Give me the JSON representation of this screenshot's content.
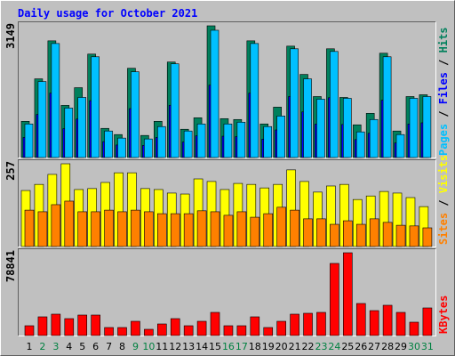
{
  "title": "Daily usage for October 2021",
  "legend_separator": " / ",
  "chart_data": [
    {
      "type": "bar",
      "series": [
        {
          "name": "Hits",
          "color": "#00805C",
          "values": [
            866,
            1881,
            2790,
            1247,
            1670,
            2473,
            697,
            549,
            2134,
            528,
            866,
            2283,
            676,
            951,
            3149,
            930,
            909,
            2790,
            803,
            1205,
            2663,
            1987,
            1458,
            2600,
            1437,
            782,
            1057,
            2494,
            634,
            1458,
            1501
          ]
        },
        {
          "name": "Files",
          "color": "#0000FF",
          "values": [
            480,
            1030,
            1540,
            690,
            920,
            1360,
            380,
            300,
            1170,
            290,
            480,
            1250,
            370,
            520,
            1730,
            510,
            500,
            1540,
            440,
            660,
            1460,
            1090,
            800,
            1430,
            790,
            430,
            580,
            1370,
            350,
            800,
            830
          ]
        },
        {
          "name": "Pages",
          "color": "#00C0FF",
          "values": [
            803,
            1817,
            2726,
            1183,
            1437,
            2409,
            634,
            465,
            2050,
            444,
            740,
            2240,
            634,
            803,
            3043,
            803,
            845,
            2726,
            740,
            993,
            2600,
            1881,
            1395,
            2536,
            1416,
            613,
            909,
            2409,
            549,
            1416,
            1458
          ]
        }
      ],
      "ylim": [
        0,
        3149
      ],
      "yticks": [
        3149
      ]
    },
    {
      "type": "bar",
      "series": [
        {
          "name": "Visits",
          "color": "#FFFF00",
          "values": [
            174,
            193,
            224,
            257,
            177,
            180,
            199,
            229,
            229,
            180,
            177,
            166,
            163,
            210,
            202,
            177,
            196,
            193,
            182,
            193,
            238,
            202,
            169,
            188,
            193,
            146,
            157,
            171,
            166,
            152,
            124
          ]
        },
        {
          "name": "Sites",
          "color": "#FF8000",
          "values": [
            113,
            108,
            130,
            141,
            108,
            108,
            113,
            108,
            113,
            108,
            102,
            102,
            102,
            111,
            108,
            97,
            108,
            91,
            102,
            122,
            113,
            86,
            86,
            69,
            80,
            69,
            86,
            75,
            66,
            64,
            58
          ]
        }
      ],
      "ylim": [
        0,
        257
      ],
      "yticks": [
        257
      ]
    },
    {
      "type": "bar",
      "categories": [
        "1",
        "2",
        "3",
        "4",
        "5",
        "6",
        "7",
        "8",
        "9",
        "10",
        "11",
        "12",
        "13",
        "14",
        "15",
        "16",
        "17",
        "18",
        "19",
        "20",
        "21",
        "22",
        "23",
        "24",
        "25",
        "26",
        "27",
        "28",
        "29",
        "30",
        "31"
      ],
      "highlight_categories": [
        1,
        2,
        8,
        9,
        15,
        16,
        22,
        23,
        29,
        30
      ],
      "highlight_color": "#008040",
      "series": [
        {
          "name": "KBytes",
          "color": "#FF0000",
          "values": [
            9328,
            17808,
            20352,
            16112,
            19504,
            19504,
            7632,
            7632,
            13568,
            5936,
            11024,
            16112,
            9328,
            13568,
            22048,
            9328,
            9328,
            17808,
            7632,
            13568,
            20352,
            21200,
            22048,
            68688,
            78841,
            30528,
            23744,
            28832,
            22048,
            12720,
            26288
          ]
        }
      ],
      "ylim": [
        0,
        78841
      ],
      "yticks": [
        78841
      ]
    }
  ]
}
